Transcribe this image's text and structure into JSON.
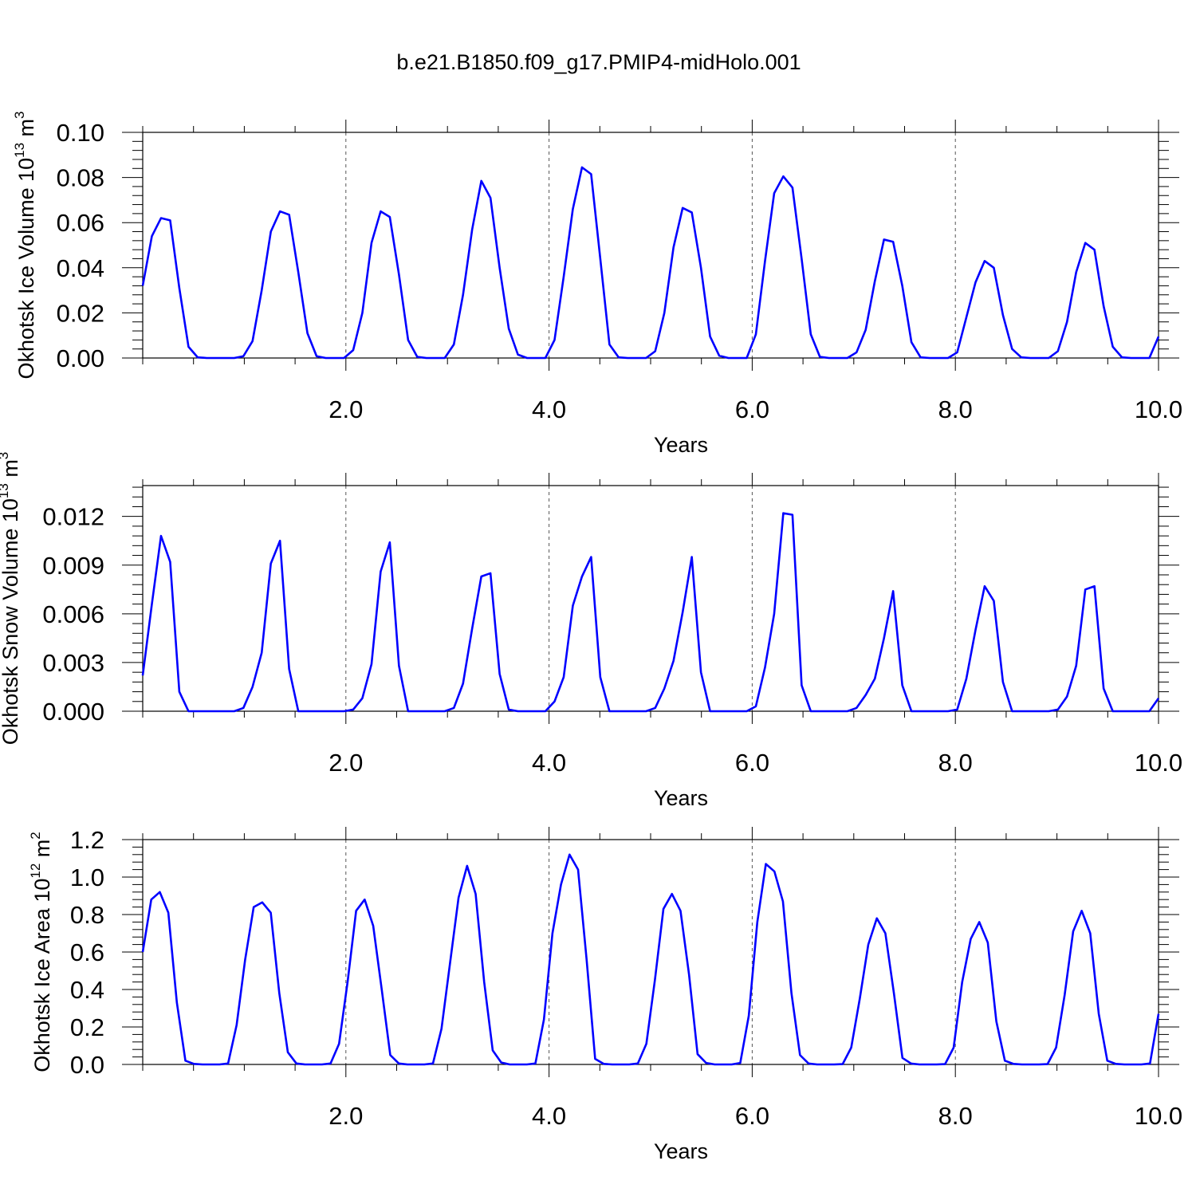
{
  "title": "b.e21.B1850.f09_g17.PMIP4-midHolo.001",
  "colors": {
    "line": "#0000ff",
    "axis": "#000000"
  },
  "chart_data": [
    {
      "type": "line",
      "ylabel_main": "Okhotsk Ice Volume 10",
      "ylabel_exp": "13",
      "ylabel_unit": " m",
      "ylabel_unit_exp": "3",
      "xlabel": "Years",
      "xlim": [
        0,
        10
      ],
      "ylim": [
        0,
        0.1
      ],
      "xticks": [
        2,
        4,
        6,
        8,
        10
      ],
      "xtick_labels": [
        "2.0",
        "4.0",
        "6.0",
        "8.0",
        "10.0"
      ],
      "yticks": [
        0,
        0.02,
        0.04,
        0.06,
        0.08,
        0.1
      ],
      "ytick_labels": [
        "0.00",
        "0.02",
        "0.04",
        "0.06",
        "0.08",
        "0.10"
      ],
      "grid": "dashed vertical lines at 2, 4, 6, 8",
      "series": [
        {
          "values": [
            0.032,
            0.054,
            0.062,
            0.061,
            0.031,
            0.005,
            0.0003,
            0,
            0,
            0,
            0,
            0.0008,
            0.0075,
            0.03,
            0.056,
            0.065,
            0.0635,
            0.038,
            0.011,
            0.0008,
            0,
            0,
            0,
            0.0035,
            0.02,
            0.051,
            0.065,
            0.0625,
            0.037,
            0.008,
            0.0005,
            0,
            0,
            0,
            0.006,
            0.028,
            0.057,
            0.0785,
            0.071,
            0.04,
            0.013,
            0.0015,
            0,
            0,
            0,
            0.008,
            0.036,
            0.066,
            0.0845,
            0.0815,
            0.044,
            0.006,
            0.0003,
            0,
            0,
            0,
            0.003,
            0.02,
            0.049,
            0.0665,
            0.0645,
            0.04,
            0.0095,
            0.001,
            0,
            0,
            0,
            0.0105,
            0.043,
            0.073,
            0.0805,
            0.0755,
            0.044,
            0.0105,
            0.0005,
            0,
            0,
            0,
            0.0025,
            0.0125,
            0.034,
            0.0525,
            0.0515,
            0.032,
            0.007,
            0.0003,
            0,
            0,
            0,
            0.0025,
            0.018,
            0.0335,
            0.043,
            0.04,
            0.019,
            0.004,
            0.0003,
            0,
            0,
            0,
            0.003,
            0.016,
            0.038,
            0.051,
            0.048,
            0.023,
            0.005,
            0.0003,
            0,
            0,
            0,
            0.0095
          ]
        }
      ]
    },
    {
      "type": "line",
      "ylabel_main": "Okhotsk Snow Volume 10",
      "ylabel_exp": "13",
      "ylabel_unit": " m",
      "ylabel_unit_exp": "3",
      "xlabel": "Years",
      "xlim": [
        0,
        10
      ],
      "ylim": [
        0,
        0.0139
      ],
      "xticks": [
        2,
        4,
        6,
        8,
        10
      ],
      "xtick_labels": [
        "2.0",
        "4.0",
        "6.0",
        "8.0",
        "10.0"
      ],
      "yticks": [
        0,
        0.003,
        0.006,
        0.009,
        0.012
      ],
      "ytick_labels": [
        "0.000",
        "0.003",
        "0.006",
        "0.009",
        "0.012"
      ],
      "grid": "dashed vertical lines at 2, 4, 6, 8",
      "series": [
        {
          "values": [
            0.0022,
            0.0066,
            0.0108,
            0.0092,
            0.0012,
            0,
            0,
            0,
            0,
            0,
            0,
            0.0002,
            0.0015,
            0.0036,
            0.0091,
            0.0105,
            0.0026,
            0,
            0,
            0,
            0,
            0,
            0,
            0.0001,
            0.0008,
            0.0029,
            0.0086,
            0.0104,
            0.0028,
            0,
            0,
            0,
            0,
            0,
            0.0002,
            0.0017,
            0.0051,
            0.0083,
            0.0085,
            0.0023,
            0.0001,
            0,
            0,
            0,
            0,
            0.0006,
            0.0021,
            0.0065,
            0.0083,
            0.0095,
            0.0021,
            0,
            0,
            0,
            0,
            0,
            0.0002,
            0.0014,
            0.0031,
            0.0061,
            0.0095,
            0.0024,
            0,
            0,
            0,
            0,
            0,
            0.0003,
            0.0027,
            0.006,
            0.0122,
            0.0121,
            0.0016,
            0,
            0,
            0,
            0,
            0,
            0.0002,
            0.001,
            0.002,
            0.0045,
            0.0074,
            0.0016,
            0,
            0,
            0,
            0,
            0,
            0.0001,
            0.002,
            0.005,
            0.0077,
            0.0068,
            0.0018,
            0,
            0,
            0,
            0,
            0,
            0.0001,
            0.0009,
            0.0028,
            0.0075,
            0.0077,
            0.0014,
            0,
            0,
            0,
            0,
            0,
            0.0008
          ]
        }
      ]
    },
    {
      "type": "line",
      "ylabel_main": "Okhotsk Ice Area 10",
      "ylabel_exp": "12",
      "ylabel_unit": " m",
      "ylabel_unit_exp": "2",
      "xlabel": "Years",
      "xlim": [
        0,
        10
      ],
      "ylim": [
        0,
        1.2
      ],
      "xticks": [
        2,
        4,
        6,
        8,
        10
      ],
      "xtick_labels": [
        "2.0",
        "4.0",
        "6.0",
        "8.0",
        "10.0"
      ],
      "yticks": [
        0,
        0.2,
        0.4,
        0.6,
        0.8,
        1.0,
        1.2
      ],
      "ytick_labels": [
        "0.0",
        "0.2",
        "0.4",
        "0.6",
        "0.8",
        "1.0",
        "1.2"
      ],
      "grid": "dashed vertical lines at 2, 4, 6, 8",
      "series": [
        {
          "values": [
            0.6,
            0.88,
            0.92,
            0.81,
            0.33,
            0.02,
            0.003,
            0,
            0,
            0,
            0.005,
            0.21,
            0.56,
            0.84,
            0.865,
            0.81,
            0.38,
            0.065,
            0.005,
            0,
            0,
            0,
            0.005,
            0.11,
            0.44,
            0.82,
            0.88,
            0.74,
            0.4,
            0.05,
            0.005,
            0,
            0,
            0,
            0.005,
            0.19,
            0.54,
            0.89,
            1.06,
            0.91,
            0.44,
            0.075,
            0.01,
            0,
            0,
            0,
            0.005,
            0.24,
            0.7,
            0.96,
            1.12,
            1.04,
            0.56,
            0.03,
            0.003,
            0,
            0,
            0,
            0.005,
            0.11,
            0.45,
            0.83,
            0.91,
            0.82,
            0.48,
            0.055,
            0.008,
            0,
            0,
            0,
            0.008,
            0.26,
            0.76,
            1.07,
            1.03,
            0.87,
            0.38,
            0.05,
            0.005,
            0,
            0,
            0,
            0.002,
            0.09,
            0.35,
            0.64,
            0.78,
            0.7,
            0.38,
            0.035,
            0.005,
            0,
            0,
            0,
            0.002,
            0.09,
            0.44,
            0.67,
            0.76,
            0.65,
            0.23,
            0.02,
            0.003,
            0,
            0,
            0,
            0.002,
            0.09,
            0.37,
            0.71,
            0.82,
            0.7,
            0.27,
            0.02,
            0.003,
            0,
            0,
            0,
            0.005,
            0.27
          ]
        }
      ]
    }
  ]
}
